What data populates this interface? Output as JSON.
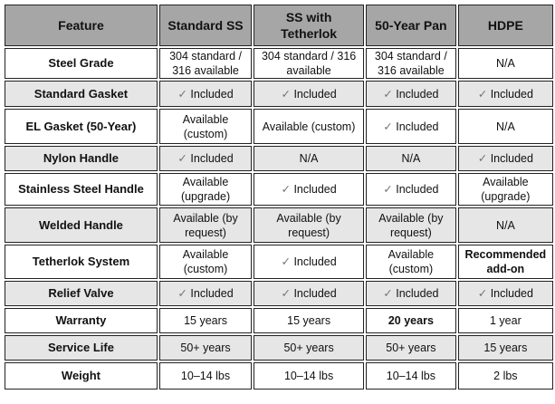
{
  "headers": [
    "Feature",
    "Standard SS",
    "SS with Tetherlok",
    "50-Year Pan",
    "HDPE"
  ],
  "check_icon": "✓",
  "rows": [
    {
      "feature": "Steel Grade",
      "cells": [
        {
          "text": "304 standard / 316 available"
        },
        {
          "text": "304 standard / 316 available"
        },
        {
          "text": "304 standard / 316 available"
        },
        {
          "text": "N/A"
        }
      ]
    },
    {
      "feature": "Standard Gasket",
      "cells": [
        {
          "text": "Included",
          "check": true
        },
        {
          "text": "Included",
          "check": true
        },
        {
          "text": "Included",
          "check": true
        },
        {
          "text": "Included",
          "check": true
        }
      ]
    },
    {
      "feature": "EL Gasket (50-Year)",
      "cells": [
        {
          "text": "Available (custom)"
        },
        {
          "text": "Available (custom)"
        },
        {
          "text": "Included",
          "check": true
        },
        {
          "text": "N/A"
        }
      ]
    },
    {
      "feature": "Nylon Handle",
      "cells": [
        {
          "text": "Included",
          "check": true
        },
        {
          "text": "N/A"
        },
        {
          "text": "N/A"
        },
        {
          "text": "Included",
          "check": true
        }
      ]
    },
    {
      "feature": "Stainless Steel Handle",
      "cells": [
        {
          "text": "Available (upgrade)"
        },
        {
          "text": "Included",
          "check": true
        },
        {
          "text": "Included",
          "check": true
        },
        {
          "text": "Available (upgrade)"
        }
      ]
    },
    {
      "feature": "Welded Handle",
      "cells": [
        {
          "text": "Available (by request)"
        },
        {
          "text": "Available (by request)"
        },
        {
          "text": "Available (by request)"
        },
        {
          "text": "N/A"
        }
      ]
    },
    {
      "feature": "Tetherlok System",
      "cells": [
        {
          "text": "Available (custom)"
        },
        {
          "text": "Included",
          "check": true
        },
        {
          "text": "Available (custom)"
        },
        {
          "text": "Recommended add-on",
          "bold": true
        }
      ]
    },
    {
      "feature": "Relief Valve",
      "cells": [
        {
          "text": "Included",
          "check": true
        },
        {
          "text": "Included",
          "check": true
        },
        {
          "text": "Included",
          "check": true
        },
        {
          "text": "Included",
          "check": true
        }
      ]
    },
    {
      "feature": "Warranty",
      "cells": [
        {
          "text": "15 years"
        },
        {
          "text": "15 years"
        },
        {
          "text": "20 years",
          "bold": true
        },
        {
          "text": "1 year"
        }
      ]
    },
    {
      "feature": "Service Life",
      "cells": [
        {
          "text": "50+ years"
        },
        {
          "text": "50+ years"
        },
        {
          "text": "50+ years"
        },
        {
          "text": "15 years"
        }
      ]
    },
    {
      "feature": "Weight",
      "cells": [
        {
          "text": "10–14 lbs"
        },
        {
          "text": "10–14 lbs"
        },
        {
          "text": "10–14 lbs"
        },
        {
          "text": "2 lbs"
        }
      ]
    }
  ]
}
